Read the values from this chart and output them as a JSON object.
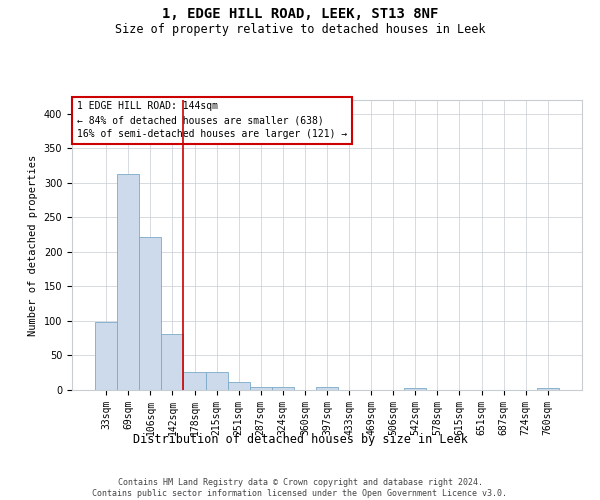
{
  "title": "1, EDGE HILL ROAD, LEEK, ST13 8NF",
  "subtitle": "Size of property relative to detached houses in Leek",
  "xlabel": "Distribution of detached houses by size in Leek",
  "ylabel": "Number of detached properties",
  "footer_line1": "Contains HM Land Registry data © Crown copyright and database right 2024.",
  "footer_line2": "Contains public sector information licensed under the Open Government Licence v3.0.",
  "bin_labels": [
    "33sqm",
    "69sqm",
    "106sqm",
    "142sqm",
    "178sqm",
    "215sqm",
    "251sqm",
    "287sqm",
    "324sqm",
    "360sqm",
    "397sqm",
    "433sqm",
    "469sqm",
    "506sqm",
    "542sqm",
    "578sqm",
    "615sqm",
    "651sqm",
    "687sqm",
    "724sqm",
    "760sqm"
  ],
  "bar_values": [
    98,
    313,
    222,
    81,
    26,
    26,
    11,
    5,
    4,
    0,
    5,
    0,
    0,
    0,
    3,
    0,
    0,
    0,
    0,
    0,
    3
  ],
  "bar_color": "#cddaeb",
  "bar_edge_color": "#7aaac8",
  "vline_color": "#cc0000",
  "annotation_box_color": "#cc0000",
  "ylim": [
    0,
    420
  ],
  "yticks": [
    0,
    50,
    100,
    150,
    200,
    250,
    300,
    350,
    400
  ],
  "background_color": "#ffffff",
  "grid_color": "#c8cdd4",
  "annotation_line1": "1 EDGE HILL ROAD: 144sqm",
  "annotation_line2": "← 84% of detached houses are smaller (638)",
  "annotation_line3": "16% of semi-detached houses are larger (121) →",
  "title_fontsize": 10,
  "subtitle_fontsize": 8.5,
  "ylabel_fontsize": 7.5,
  "xlabel_fontsize": 8.5,
  "tick_fontsize": 7,
  "annotation_fontsize": 7,
  "footer_fontsize": 6
}
